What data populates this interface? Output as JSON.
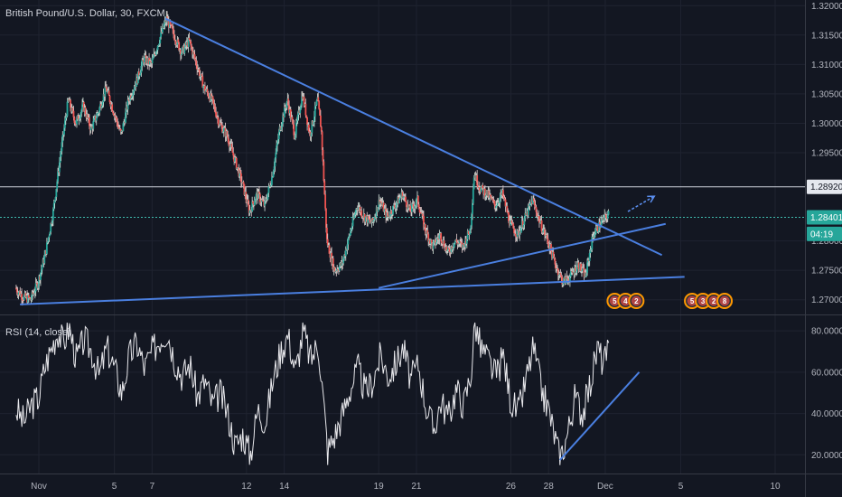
{
  "chart_data": [
    {
      "type": "candlestick",
      "title": "British Pound/U.S. Dollar, 30, FXCM",
      "ylim": [
        1.2675,
        1.3205
      ],
      "y_ticks": [
        "1.32000",
        "1.31500",
        "1.31000",
        "1.30500",
        "1.30000",
        "1.29500",
        "1.28920",
        "1.28401",
        "1.28000",
        "1.27500",
        "1.27000"
      ],
      "x_ticks": [
        {
          "label": "Nov",
          "day": 0
        },
        {
          "label": "5",
          "day": 4
        },
        {
          "label": "7",
          "day": 6
        },
        {
          "label": "12",
          "day": 11
        },
        {
          "label": "14",
          "day": 13
        },
        {
          "label": "19",
          "day": 18
        },
        {
          "label": "21",
          "day": 20
        },
        {
          "label": "26",
          "day": 25
        },
        {
          "label": "28",
          "day": 27
        },
        {
          "label": "Dec",
          "day": 30
        },
        {
          "label": "5",
          "day": 34
        },
        {
          "label": "10",
          "day": 39
        }
      ],
      "xlim": [
        -1.2,
        41
      ],
      "price_path": [
        [
          -1.2,
          1.272
        ],
        [
          -0.8,
          1.2705
        ],
        [
          -0.4,
          1.27
        ],
        [
          0.0,
          1.273
        ],
        [
          0.4,
          1.278
        ],
        [
          0.8,
          1.285
        ],
        [
          1.2,
          1.295
        ],
        [
          1.6,
          1.304
        ],
        [
          2.0,
          1.3
        ],
        [
          2.4,
          1.303
        ],
        [
          2.8,
          1.299
        ],
        [
          3.2,
          1.302
        ],
        [
          3.6,
          1.306
        ],
        [
          4.0,
          1.302
        ],
        [
          4.4,
          1.298
        ],
        [
          4.8,
          1.304
        ],
        [
          5.2,
          1.307
        ],
        [
          5.6,
          1.311
        ],
        [
          6.0,
          1.31
        ],
        [
          6.4,
          1.314
        ],
        [
          6.8,
          1.3178
        ],
        [
          7.2,
          1.315
        ],
        [
          7.6,
          1.312
        ],
        [
          8.0,
          1.314
        ],
        [
          8.4,
          1.31
        ],
        [
          8.8,
          1.306
        ],
        [
          9.2,
          1.304
        ],
        [
          9.6,
          1.3
        ],
        [
          10.0,
          1.298
        ],
        [
          10.4,
          1.294
        ],
        [
          10.8,
          1.29
        ],
        [
          11.2,
          1.285
        ],
        [
          11.6,
          1.288
        ],
        [
          12.0,
          1.286
        ],
        [
          12.4,
          1.291
        ],
        [
          12.8,
          1.299
        ],
        [
          13.2,
          1.304
        ],
        [
          13.6,
          1.298
        ],
        [
          14.0,
          1.305
        ],
        [
          14.4,
          1.298
        ],
        [
          14.8,
          1.304
        ],
        [
          15.0,
          1.299
        ],
        [
          15.3,
          1.28
        ],
        [
          15.7,
          1.275
        ],
        [
          16.1,
          1.276
        ],
        [
          16.5,
          1.281
        ],
        [
          16.9,
          1.286
        ],
        [
          17.3,
          1.284
        ],
        [
          17.7,
          1.283
        ],
        [
          18.1,
          1.287
        ],
        [
          18.5,
          1.284
        ],
        [
          18.9,
          1.286
        ],
        [
          19.3,
          1.288
        ],
        [
          19.7,
          1.285
        ],
        [
          20.1,
          1.287
        ],
        [
          20.5,
          1.282
        ],
        [
          20.9,
          1.279
        ],
        [
          21.3,
          1.281
        ],
        [
          21.7,
          1.278
        ],
        [
          22.1,
          1.28
        ],
        [
          22.5,
          1.279
        ],
        [
          22.9,
          1.282
        ],
        [
          23.1,
          1.2915
        ],
        [
          23.4,
          1.289
        ],
        [
          23.8,
          1.288
        ],
        [
          24.2,
          1.286
        ],
        [
          24.6,
          1.288
        ],
        [
          25.0,
          1.283
        ],
        [
          25.4,
          1.281
        ],
        [
          25.8,
          1.284
        ],
        [
          26.2,
          1.287
        ],
        [
          26.6,
          1.283
        ],
        [
          27.0,
          1.28
        ],
        [
          27.4,
          1.276
        ],
        [
          27.8,
          1.273
        ],
        [
          28.2,
          1.274
        ],
        [
          28.6,
          1.276
        ],
        [
          29.0,
          1.274
        ],
        [
          29.4,
          1.281
        ],
        [
          29.8,
          1.283
        ],
        [
          30.2,
          1.2845
        ]
      ],
      "trend_lines": [
        {
          "x1": 6.7,
          "y1": 1.3178,
          "x2": 33.0,
          "y2": 1.2776
        },
        {
          "x1": -1.0,
          "y1": 1.2692,
          "x2": 34.2,
          "y2": 1.2739
        },
        {
          "x1": 18.0,
          "y1": 1.272,
          "x2": 33.2,
          "y2": 1.2829
        }
      ],
      "projection_arrow": {
        "x1": 31.2,
        "y1": 1.285,
        "x2": 32.6,
        "y2": 1.2876
      },
      "price_labels": [
        {
          "text": "1.28920",
          "value": 1.2892,
          "style": "light"
        },
        {
          "text": "1.28401",
          "value": 1.28401,
          "style": "teal"
        },
        {
          "text": "04:19",
          "value": 1.2812,
          "style": "teal"
        }
      ],
      "event_markers": [
        {
          "day": 30.5,
          "items": [
            "5",
            "4",
            "2"
          ]
        },
        {
          "day": 34.6,
          "items": [
            "5",
            "3",
            "2",
            "8"
          ]
        }
      ]
    },
    {
      "type": "line",
      "title": "RSI (14, close)",
      "ylim": [
        14,
        84
      ],
      "y_ticks": [
        "80.0000",
        "60.0000",
        "40.0000",
        "20.0000"
      ],
      "rsi_path": [
        [
          -1.2,
          42
        ],
        [
          -0.8,
          36
        ],
        [
          -0.4,
          44
        ],
        [
          0.0,
          48
        ],
        [
          0.3,
          62
        ],
        [
          0.6,
          70
        ],
        [
          1.0,
          80
        ],
        [
          1.3,
          74
        ],
        [
          1.6,
          82
        ],
        [
          2.0,
          66
        ],
        [
          2.4,
          76
        ],
        [
          2.8,
          70
        ],
        [
          3.2,
          58
        ],
        [
          3.6,
          72
        ],
        [
          4.0,
          62
        ],
        [
          4.4,
          50
        ],
        [
          4.8,
          68
        ],
        [
          5.2,
          74
        ],
        [
          5.6,
          62
        ],
        [
          6.0,
          70
        ],
        [
          6.4,
          76
        ],
        [
          6.8,
          80
        ],
        [
          7.2,
          66
        ],
        [
          7.6,
          58
        ],
        [
          8.0,
          64
        ],
        [
          8.4,
          48
        ],
        [
          8.8,
          56
        ],
        [
          9.2,
          44
        ],
        [
          9.6,
          50
        ],
        [
          10.0,
          40
        ],
        [
          10.4,
          24
        ],
        [
          10.8,
          30
        ],
        [
          11.2,
          20
        ],
        [
          11.6,
          42
        ],
        [
          12.0,
          36
        ],
        [
          12.4,
          56
        ],
        [
          12.8,
          70
        ],
        [
          13.2,
          78
        ],
        [
          13.6,
          60
        ],
        [
          14.0,
          80
        ],
        [
          14.4,
          66
        ],
        [
          14.8,
          74
        ],
        [
          15.0,
          54
        ],
        [
          15.3,
          22
        ],
        [
          15.7,
          30
        ],
        [
          16.1,
          40
        ],
        [
          16.5,
          52
        ],
        [
          16.9,
          62
        ],
        [
          17.3,
          50
        ],
        [
          17.7,
          56
        ],
        [
          18.1,
          68
        ],
        [
          18.5,
          58
        ],
        [
          18.9,
          64
        ],
        [
          19.3,
          72
        ],
        [
          19.7,
          56
        ],
        [
          20.1,
          64
        ],
        [
          20.5,
          44
        ],
        [
          20.9,
          32
        ],
        [
          21.3,
          46
        ],
        [
          21.7,
          38
        ],
        [
          22.1,
          52
        ],
        [
          22.5,
          44
        ],
        [
          22.9,
          60
        ],
        [
          23.1,
          84
        ],
        [
          23.4,
          72
        ],
        [
          23.8,
          66
        ],
        [
          24.2,
          58
        ],
        [
          24.6,
          68
        ],
        [
          25.0,
          46
        ],
        [
          25.4,
          40
        ],
        [
          25.8,
          56
        ],
        [
          26.2,
          72
        ],
        [
          26.6,
          52
        ],
        [
          27.0,
          42
        ],
        [
          27.3,
          30
        ],
        [
          27.6,
          18
        ],
        [
          28.0,
          30
        ],
        [
          28.4,
          48
        ],
        [
          28.8,
          40
        ],
        [
          29.2,
          54
        ],
        [
          29.6,
          72
        ],
        [
          29.9,
          64
        ],
        [
          30.2,
          70
        ]
      ],
      "trend_line": {
        "x1": 27.6,
        "y1": 17.5,
        "x2": 31.8,
        "y2": 60
      }
    }
  ]
}
